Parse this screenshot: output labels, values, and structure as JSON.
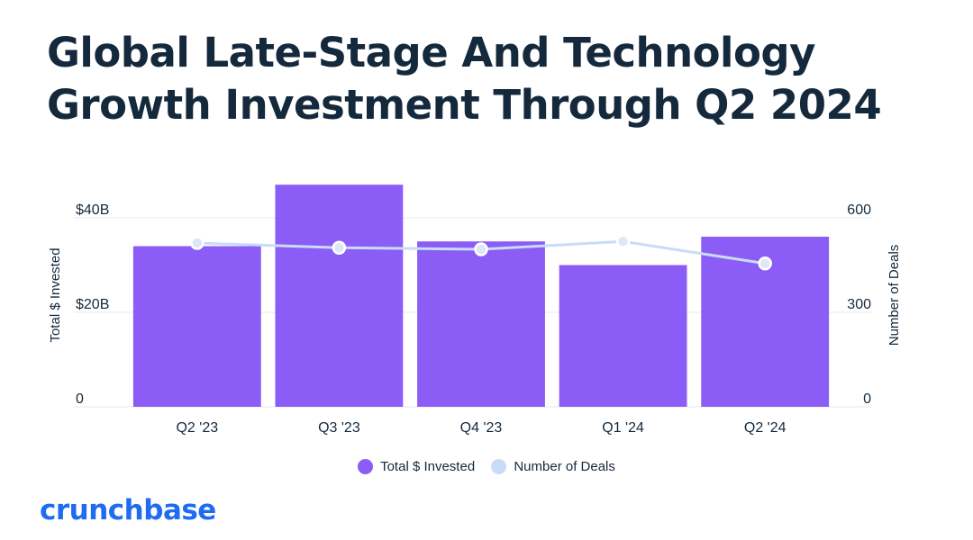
{
  "title_lines": [
    "Global Late-Stage And Technology",
    "Growth Investment Through Q2 2024"
  ],
  "brand": "crunchbase",
  "colors": {
    "bars": "#8b5cf6",
    "line": "#c9dcf6",
    "text": "#15293d",
    "grid": "#e6e8ec",
    "logo": "#1f6cf2"
  },
  "chart_data": {
    "type": "bar",
    "categories": [
      "Q2 '23",
      "Q3 '23",
      "Q4 '23",
      "Q1 '24",
      "Q2 '24"
    ],
    "series": [
      {
        "name": "Total $ Invested",
        "type": "bar",
        "axis": "left",
        "values": [
          34,
          47,
          35,
          30,
          36
        ]
      },
      {
        "name": "Number of Deals",
        "type": "line",
        "axis": "right",
        "values": [
          520,
          505,
          500,
          525,
          455
        ]
      }
    ],
    "y_left": {
      "label": "Total $ Invested",
      "range": [
        0,
        40
      ],
      "ticks": [
        0,
        20,
        40
      ],
      "tick_labels": [
        "0",
        "$20B",
        "$40B"
      ]
    },
    "y_right": {
      "label": "Number of Deals",
      "range": [
        0,
        600
      ],
      "ticks": [
        0,
        300,
        600
      ],
      "tick_labels": [
        "0",
        "300",
        "600"
      ]
    },
    "grid": true,
    "legend_position": "bottom-center"
  }
}
